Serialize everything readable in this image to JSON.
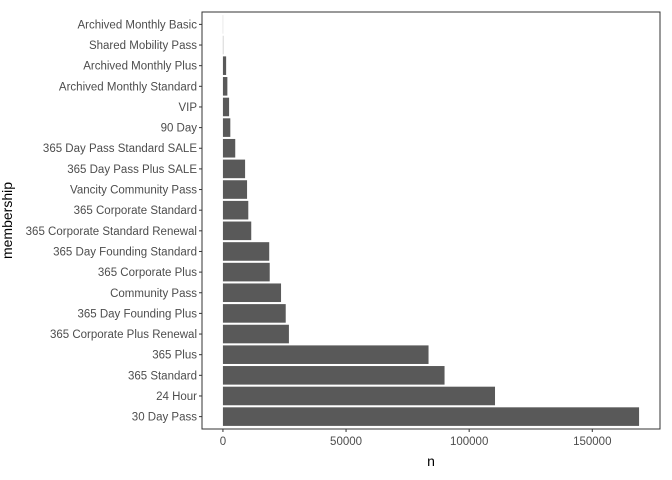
{
  "chart_data": {
    "type": "bar",
    "orientation": "horizontal",
    "xlabel": "n",
    "ylabel": "membership",
    "xlim": [
      -8500,
      177500
    ],
    "xticks": [
      0,
      50000,
      100000,
      150000
    ],
    "xtick_labels": [
      "0",
      "50000",
      "100000",
      "150000"
    ],
    "grid": false,
    "categories": [
      "30 Day Pass",
      "24 Hour",
      "365 Standard",
      "365 Plus",
      "365 Corporate Plus Renewal",
      "365 Day Founding Plus",
      "Community Pass",
      "365 Corporate Plus",
      "365 Day Founding Standard",
      "365 Corporate Standard Renewal",
      "365 Corporate Standard",
      "Vancity Community Pass",
      "365 Day Pass Plus SALE",
      "365 Day Pass Standard SALE",
      "90 Day",
      "VIP",
      "Archived Monthly Standard",
      "Archived Monthly Plus",
      "Shared Mobility Pass",
      "Archived Monthly Basic"
    ],
    "values": [
      169000,
      110500,
      90000,
      83500,
      26800,
      25500,
      23600,
      19000,
      18800,
      11500,
      10300,
      9800,
      9000,
      5000,
      3000,
      2500,
      1800,
      1300,
      100,
      50
    ],
    "colors": {
      "bar": "#595959",
      "panel_border": "#333333",
      "background": "#ffffff"
    }
  }
}
